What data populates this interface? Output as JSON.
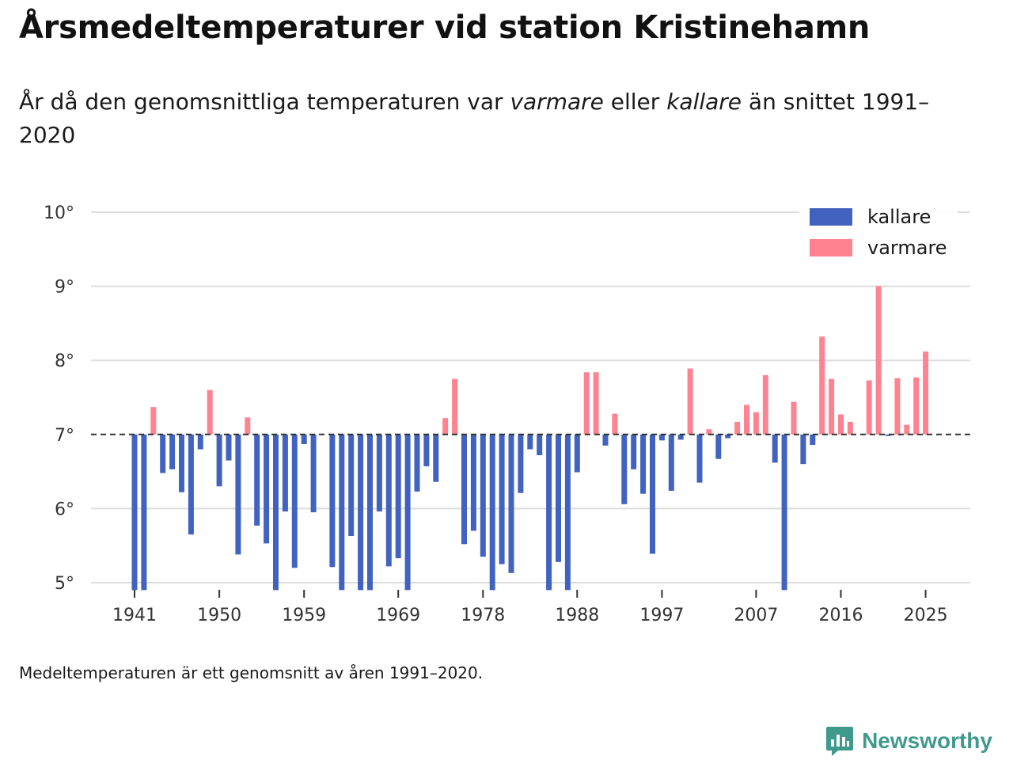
{
  "title": "Årsmedeltemperaturer vid station Kristinehamn",
  "subtitle": {
    "part1": "År då den genomsnittliga temperaturen var ",
    "warm_word": "varmare",
    "part2": " eller ",
    "cold_word": "kallare",
    "part3": " än snittet 1991–2020"
  },
  "note": "Medeltemperaturen är ett genomsnitt av åren 1991–2020.",
  "brand": {
    "name": "Newsworthy",
    "icon": "newsworthy-logo-icon"
  },
  "colors": {
    "cold": "#4262bf",
    "warm": "#ff8291",
    "grid": "#dddddd",
    "baseline": "#333333",
    "brand": "#3f9a8c"
  },
  "chart_data": {
    "type": "bar",
    "title": "Årsmedeltemperaturer vid station Kristinehamn",
    "xlabel": "",
    "ylabel": "",
    "baseline": 7.0,
    "ylim": [
      4.9,
      10.1
    ],
    "yticks": [
      5,
      6,
      7,
      8,
      9,
      10
    ],
    "ytick_suffix": "°",
    "xticks": [
      1941,
      1950,
      1959,
      1969,
      1978,
      1988,
      1997,
      2007,
      2016,
      2025
    ],
    "legend": [
      {
        "key": "cold",
        "label": "kallare"
      },
      {
        "key": "warm",
        "label": "varmare"
      }
    ],
    "legend_position": "top-right",
    "years": [
      1941,
      1942,
      1943,
      1944,
      1945,
      1946,
      1947,
      1948,
      1949,
      1950,
      1951,
      1952,
      1953,
      1954,
      1955,
      1956,
      1957,
      1958,
      1959,
      1960,
      1961,
      1962,
      1963,
      1964,
      1965,
      1966,
      1967,
      1968,
      1969,
      1970,
      1971,
      1972,
      1973,
      1974,
      1975,
      1976,
      1977,
      1978,
      1979,
      1980,
      1981,
      1982,
      1983,
      1984,
      1985,
      1986,
      1987,
      1988,
      1989,
      1990,
      1991,
      1992,
      1993,
      1994,
      1995,
      1996,
      1997,
      1998,
      1999,
      2000,
      2001,
      2002,
      2003,
      2004,
      2005,
      2006,
      2007,
      2008,
      2009,
      2010,
      2011,
      2012,
      2013,
      2014,
      2015,
      2016,
      2017,
      2018,
      2019,
      2020,
      2021,
      2022,
      2023,
      2024,
      2025
    ],
    "values": [
      4.9,
      4.9,
      7.37,
      6.48,
      6.53,
      6.22,
      5.65,
      6.8,
      7.6,
      6.3,
      6.65,
      5.38,
      7.23,
      5.77,
      5.53,
      4.9,
      5.96,
      5.2,
      6.87,
      5.95,
      null,
      5.21,
      4.9,
      5.63,
      4.9,
      4.9,
      5.96,
      5.22,
      5.33,
      4.9,
      6.23,
      6.57,
      6.36,
      7.22,
      7.75,
      5.52,
      5.7,
      5.35,
      4.9,
      5.25,
      5.13,
      6.21,
      6.8,
      6.72,
      4.9,
      5.28,
      4.9,
      6.49,
      7.84,
      7.84,
      6.85,
      7.28,
      6.06,
      6.53,
      6.2,
      5.39,
      6.92,
      6.24,
      6.93,
      7.89,
      6.35,
      7.07,
      6.67,
      6.95,
      7.17,
      7.4,
      7.3,
      7.8,
      6.62,
      4.9,
      7.44,
      6.6,
      6.86,
      8.32,
      7.75,
      7.27,
      7.17,
      null,
      7.73,
      9.0,
      6.98,
      7.76,
      7.13,
      7.77,
      8.12
    ]
  }
}
